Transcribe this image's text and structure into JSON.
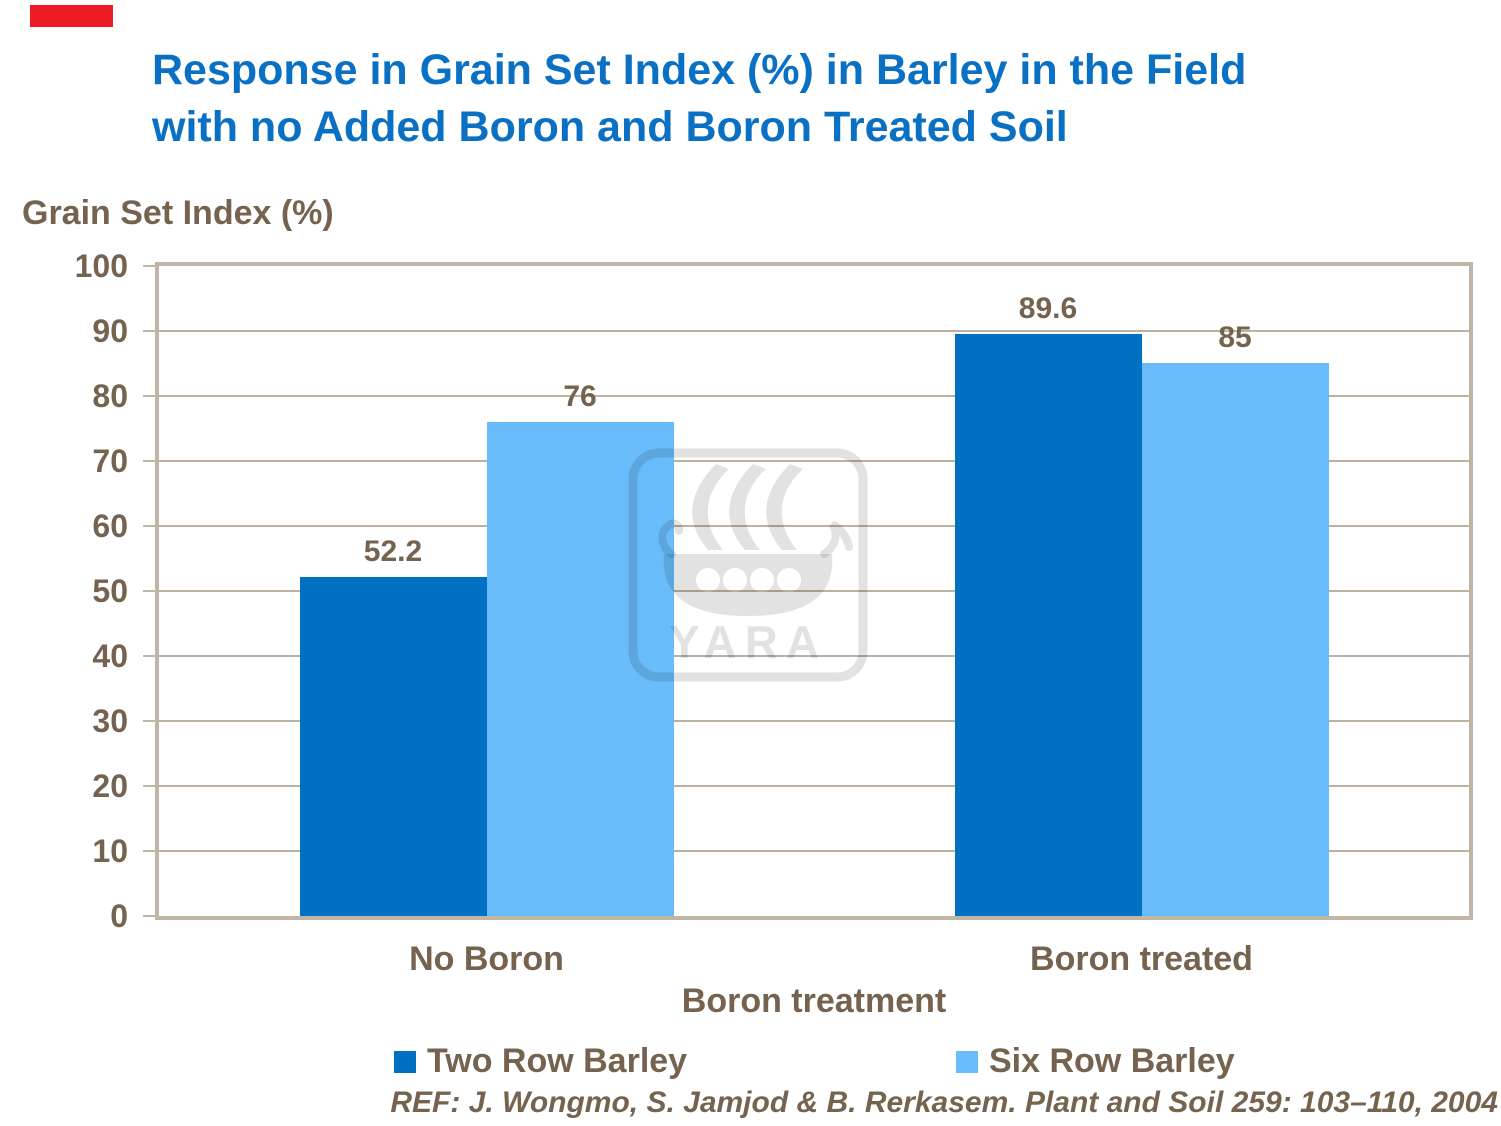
{
  "slide": {
    "title_line1": "Response in Grain Set Index (%) in Barley in the Field",
    "title_line2": "with no Added Boron and Boron Treated Soil",
    "reference": "REF: J. Wongmo, S. Jamjod & B. Rerkasem. Plant and Soil 259: 103–110, 2004"
  },
  "chart_data": {
    "type": "bar",
    "title": "Response in Grain Set Index (%) in Barley in the Field with no Added Boron and Boron Treated Soil",
    "ylabel": "Grain Set Index (%)",
    "xlabel": "Boron treatment",
    "categories": [
      "No Boron",
      "Boron treated"
    ],
    "series": [
      {
        "name": "Two Row Barley",
        "values": [
          52.2,
          89.6
        ],
        "labels": [
          "52.2",
          "89.6"
        ],
        "color": "#0070c2"
      },
      {
        "name": "Six Row Barley",
        "values": [
          76,
          85
        ],
        "labels": [
          "76",
          "85"
        ],
        "color": "#68bcfa"
      }
    ],
    "ylim": [
      0,
      100
    ],
    "yticks": [
      0,
      10,
      20,
      30,
      40,
      50,
      60,
      70,
      80,
      90,
      100
    ],
    "grid": true,
    "legend_position": "bottom"
  },
  "watermark": {
    "text": "YARA"
  },
  "colors": {
    "title_blue": "#0a70c4",
    "text_brown": "#756350",
    "bar_dark_blue": "#0070c2",
    "bar_light_blue": "#68bcfa",
    "brand_red": "#ed1c24",
    "frame_taupe": "#c1b5a7",
    "gridline_taupe": "#bdb1a2"
  }
}
